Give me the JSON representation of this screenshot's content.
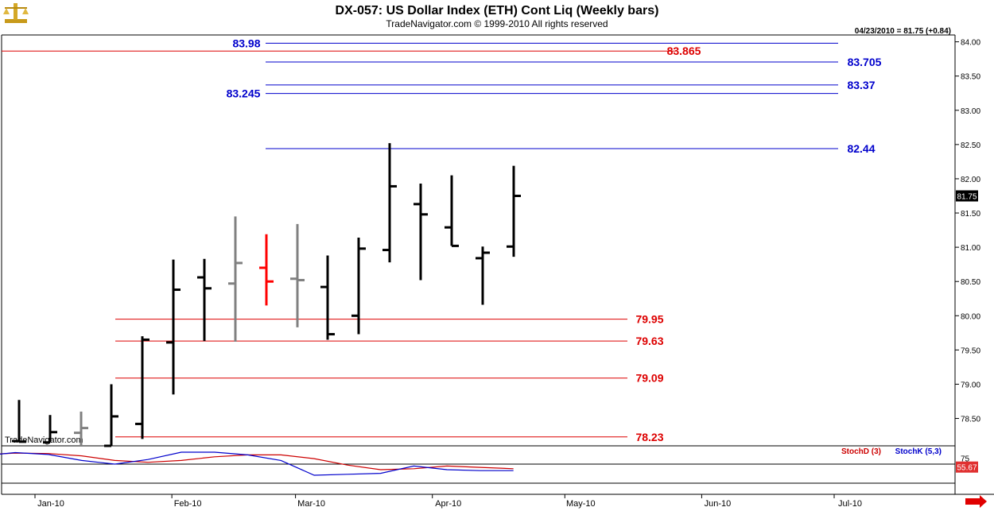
{
  "header": {
    "title": "DX-057:  US Dollar Index (ETH) Cont Liq  (Weekly bars)",
    "subtitle": "TradeNavigator.com © 1999-2010 All rights reserved",
    "last_info": "04/23/2010 = 81.75 (+0.84)",
    "watermark": "TradeNavigator.com",
    "logo_icon": "scales-icon",
    "arrow_icon": "right-arrow-icon"
  },
  "chart_data": [
    {
      "type": "ohlc",
      "ylim": [
        78.1,
        84.1
      ],
      "y_ticks": [
        "84.00",
        "83.50",
        "83.00",
        "82.50",
        "82.00",
        "81.50",
        "81.00",
        "80.50",
        "80.00",
        "79.50",
        "79.00",
        "78.50"
      ],
      "x_labels": [
        "Jan-10",
        "Feb-10",
        "Mar-10",
        "Apr-10",
        "May-10",
        "Jun-10",
        "Jul-10"
      ],
      "last_price_label": "81.75",
      "bars": [
        {
          "date": "2009-12-28",
          "open": 78.17,
          "high": 78.77,
          "low": 78.15,
          "close": 78.16,
          "color": "black"
        },
        {
          "date": "2010-01-04",
          "open": 78.15,
          "high": 78.55,
          "low": 78.15,
          "close": 78.3,
          "color": "black"
        },
        {
          "date": "2010-01-11",
          "open": 78.29,
          "high": 78.6,
          "low": 78.1,
          "close": 78.36,
          "color": "gray"
        },
        {
          "date": "2010-01-18",
          "open": 78.1,
          "high": 79.0,
          "low": 78.1,
          "close": 78.53,
          "color": "black"
        },
        {
          "date": "2010-01-25",
          "open": 78.42,
          "high": 79.7,
          "low": 78.2,
          "close": 79.65,
          "color": "black"
        },
        {
          "date": "2010-02-01",
          "open": 79.61,
          "high": 80.82,
          "low": 78.85,
          "close": 80.38,
          "color": "black"
        },
        {
          "date": "2010-02-08",
          "open": 80.56,
          "high": 80.83,
          "low": 79.63,
          "close": 80.4,
          "color": "black"
        },
        {
          "date": "2010-02-15",
          "open": 80.47,
          "high": 81.45,
          "low": 79.62,
          "close": 80.77,
          "color": "gray"
        },
        {
          "date": "2010-02-22",
          "open": 80.7,
          "high": 81.19,
          "low": 80.15,
          "close": 80.5,
          "color": "red"
        },
        {
          "date": "2010-03-01",
          "open": 80.54,
          "high": 81.34,
          "low": 79.83,
          "close": 80.52,
          "color": "gray"
        },
        {
          "date": "2010-03-08",
          "open": 80.42,
          "high": 80.88,
          "low": 79.65,
          "close": 79.73,
          "color": "black"
        },
        {
          "date": "2010-03-15",
          "open": 80.0,
          "high": 81.14,
          "low": 79.73,
          "close": 80.98,
          "color": "black"
        },
        {
          "date": "2010-03-22",
          "open": 80.96,
          "high": 82.52,
          "low": 80.78,
          "close": 81.89,
          "color": "black"
        },
        {
          "date": "2010-03-29",
          "open": 81.63,
          "high": 81.93,
          "low": 80.52,
          "close": 81.48,
          "color": "black"
        },
        {
          "date": "2010-04-05",
          "open": 81.29,
          "high": 82.05,
          "low": 81.02,
          "close": 81.02,
          "color": "black"
        },
        {
          "date": "2010-04-12",
          "open": 80.84,
          "high": 81.01,
          "low": 80.16,
          "close": 80.92,
          "color": "black"
        },
        {
          "date": "2010-04-19",
          "open": 81.01,
          "high": 82.19,
          "low": 80.86,
          "close": 81.75,
          "color": "black"
        }
      ],
      "levels": [
        {
          "value": 83.98,
          "label": "83.98",
          "color": "#0000cc"
        },
        {
          "value": 83.865,
          "label": "83.865",
          "color": "#dd0000"
        },
        {
          "value": 83.705,
          "label": "83.705",
          "color": "#0000cc"
        },
        {
          "value": 83.37,
          "label": "83.37",
          "color": "#0000cc"
        },
        {
          "value": 83.245,
          "label": "83.245",
          "color": "#0000cc"
        },
        {
          "value": 82.44,
          "label": "82.44",
          "color": "#0000cc"
        },
        {
          "value": 79.95,
          "label": "79.95",
          "color": "#dd0000"
        },
        {
          "value": 79.63,
          "label": "79.63",
          "color": "#dd0000"
        },
        {
          "value": 79.09,
          "label": "79.09",
          "color": "#dd0000"
        },
        {
          "value": 78.23,
          "label": "78.23",
          "color": "#dd0000"
        }
      ]
    },
    {
      "type": "line",
      "y_ticks": [
        "75"
      ],
      "last_value_label": "55.67",
      "series": [
        {
          "name": "StochD (3)",
          "color": "#cc0000",
          "values": [
            82,
            86,
            85,
            80,
            70,
            66,
            70,
            78,
            82,
            82,
            74,
            60,
            50,
            52,
            58,
            55,
            52
          ]
        },
        {
          "name": "StochK (5,3)",
          "color": "#0000cc",
          "values": [
            80,
            87,
            83,
            70,
            62,
            72,
            88,
            88,
            82,
            70,
            38,
            40,
            42,
            58,
            50,
            48,
            48
          ]
        }
      ]
    }
  ],
  "colors": {
    "up": "#000000",
    "gray": "#808080",
    "red": "#ff0000",
    "grid": "#e0e0e0"
  }
}
